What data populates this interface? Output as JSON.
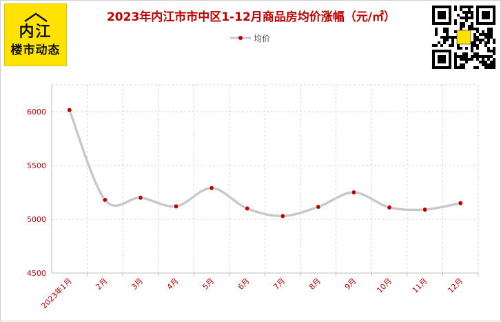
{
  "logo": {
    "line1": "内江",
    "line2": "楼市动态"
  },
  "legend": {
    "label": "均价"
  },
  "colors": {
    "line": "#c8c8c8",
    "marker": "#c00000",
    "title": "#c00000",
    "grid": "#d5d5d5"
  },
  "chart_data": {
    "type": "line",
    "title": "2023年内江市市中区1-12月商品房均价涨幅（元/㎡）",
    "categories": [
      "2023年1月",
      "2月",
      "3月",
      "4月",
      "5月",
      "6月",
      "7月",
      "8月",
      "9月",
      "10月",
      "11月",
      "12月"
    ],
    "series": [
      {
        "name": "均价",
        "values": [
          6015,
          5180,
          5200,
          5120,
          5290,
          5100,
          5030,
          5115,
          5250,
          5110,
          5090,
          5150
        ]
      }
    ],
    "yticks": [
      4500,
      5000,
      5500,
      6000
    ],
    "ylim": [
      4500,
      6250
    ],
    "grid": true,
    "smooth": true,
    "legend_position": "top-center"
  }
}
